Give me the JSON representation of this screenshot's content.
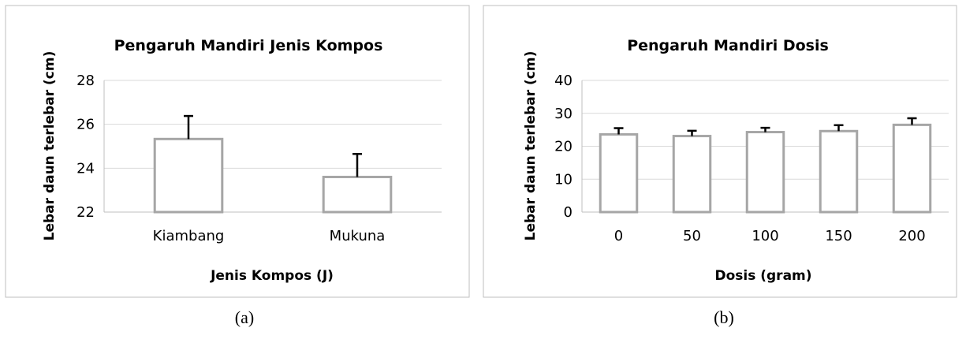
{
  "chart_data": [
    {
      "type": "bar",
      "title": "Pengaruh Mandiri Jenis Kompos",
      "xlabel": "Jenis Kompos (J)",
      "ylabel": "Lebar daun terlebar (cm)",
      "categories": [
        "Kiambang",
        "Mukuna"
      ],
      "values": [
        25.33,
        23.6
      ],
      "errors": [
        1.05,
        1.05
      ],
      "ylim": [
        22,
        28
      ],
      "yticks": [
        22,
        24,
        26,
        28
      ],
      "grid": true,
      "bar_fill": "#ffffff",
      "bar_stroke": "#a6a6a6",
      "caption": "(a)"
    },
    {
      "type": "bar",
      "title": "Pengaruh Mandiri Dosis",
      "xlabel": "Dosis (gram)",
      "ylabel": "Lebar daun terlebar (cm)",
      "categories": [
        "0",
        "50",
        "100",
        "150",
        "200"
      ],
      "values": [
        23.6,
        23.1,
        24.3,
        24.6,
        26.5
      ],
      "errors": [
        1.9,
        1.6,
        1.3,
        1.8,
        2.0
      ],
      "ylim": [
        0,
        40
      ],
      "yticks": [
        0,
        10,
        20,
        30,
        40
      ],
      "grid": true,
      "bar_fill": "#ffffff",
      "bar_stroke": "#a6a6a6",
      "caption": "(b)"
    }
  ]
}
